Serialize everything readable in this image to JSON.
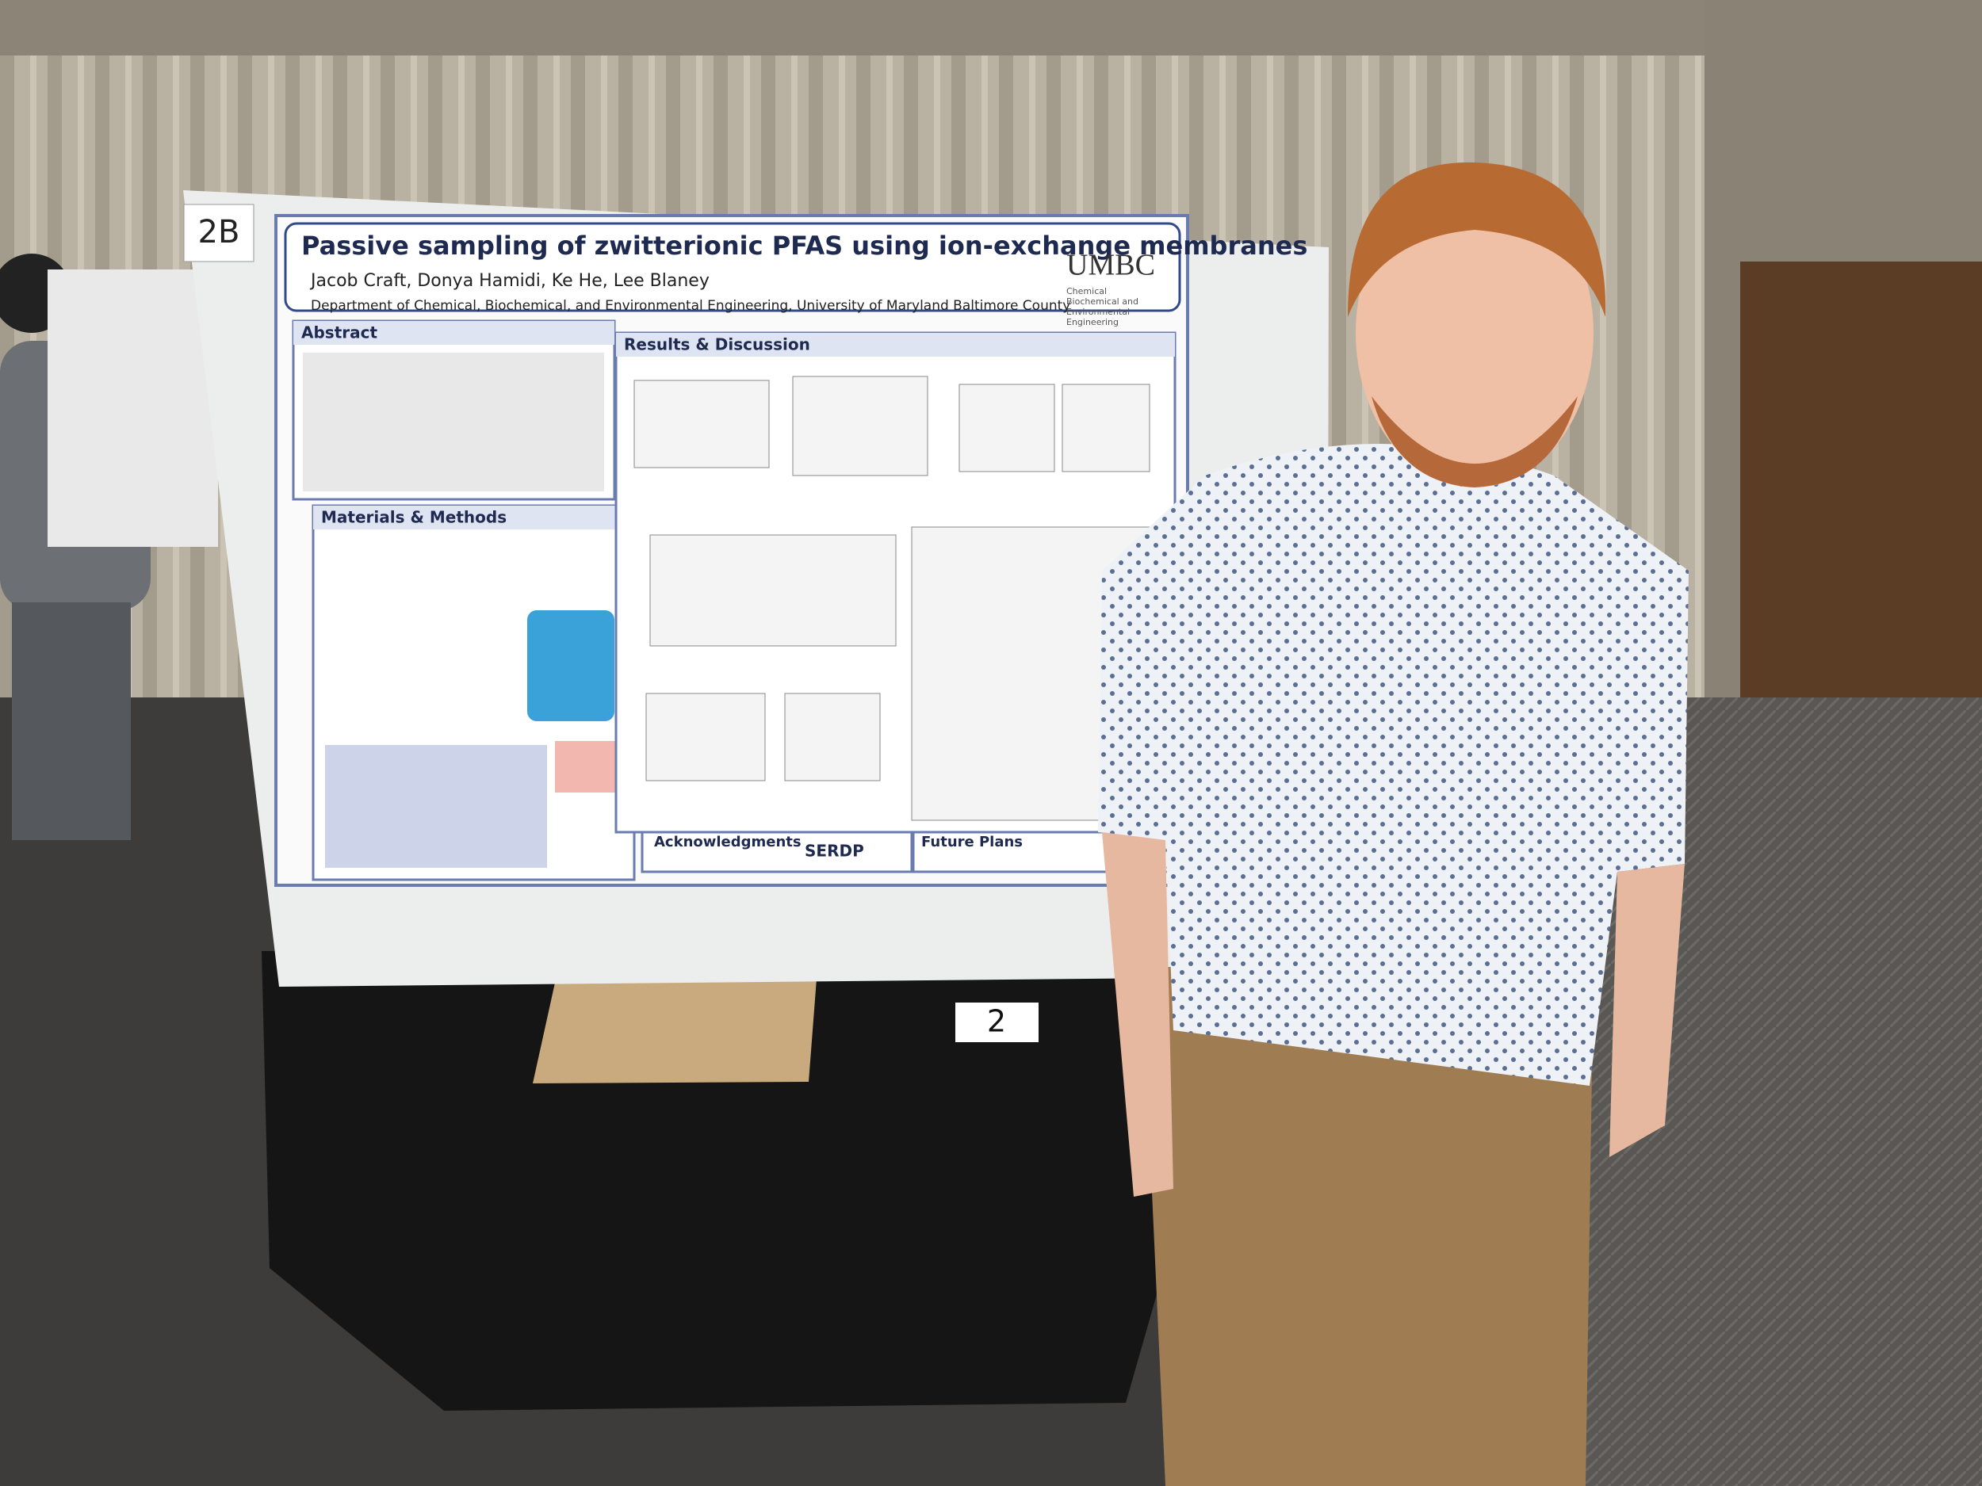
{
  "board_label": "2B",
  "poster": {
    "title": "Passive sampling of zwitterionic PFAS using ion-exchange membranes",
    "authors": "Jacob Craft, Donya Hamidi, Ke He, Lee Blaney",
    "affiliation": "Department of Chemical, Biochemical, and Environmental Engineering, University of Maryland Baltimore County",
    "logo": "UMBC",
    "department_logo": [
      "Chemical",
      "Biochemical and",
      "Environmental",
      "Engineering"
    ],
    "sections": [
      "Abstract",
      "Materials & Methods",
      "Results & Discussion",
      "Acknowledgments",
      "Future Plans"
    ],
    "sponsor": "SERDP"
  },
  "table_number": "2"
}
